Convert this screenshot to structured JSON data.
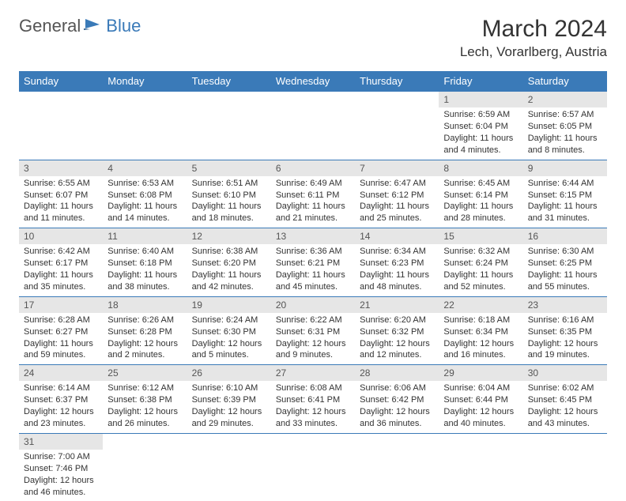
{
  "logo": {
    "general": "General",
    "blue": "Blue"
  },
  "title": "March 2024",
  "location": "Lech, Vorarlberg, Austria",
  "colors": {
    "header_bg": "#3a7ab8",
    "header_text": "#ffffff",
    "daynum_bg": "#e6e6e6",
    "border": "#3a7ab8",
    "text": "#333333",
    "logo_gray": "#555555",
    "logo_blue": "#3a7ab8",
    "page_bg": "#ffffff"
  },
  "weekdays": [
    "Sunday",
    "Monday",
    "Tuesday",
    "Wednesday",
    "Thursday",
    "Friday",
    "Saturday"
  ],
  "weeks": [
    [
      null,
      null,
      null,
      null,
      null,
      {
        "d": "1",
        "sr": "Sunrise: 6:59 AM",
        "ss": "Sunset: 6:04 PM",
        "dl1": "Daylight: 11 hours",
        "dl2": "and 4 minutes."
      },
      {
        "d": "2",
        "sr": "Sunrise: 6:57 AM",
        "ss": "Sunset: 6:05 PM",
        "dl1": "Daylight: 11 hours",
        "dl2": "and 8 minutes."
      }
    ],
    [
      {
        "d": "3",
        "sr": "Sunrise: 6:55 AM",
        "ss": "Sunset: 6:07 PM",
        "dl1": "Daylight: 11 hours",
        "dl2": "and 11 minutes."
      },
      {
        "d": "4",
        "sr": "Sunrise: 6:53 AM",
        "ss": "Sunset: 6:08 PM",
        "dl1": "Daylight: 11 hours",
        "dl2": "and 14 minutes."
      },
      {
        "d": "5",
        "sr": "Sunrise: 6:51 AM",
        "ss": "Sunset: 6:10 PM",
        "dl1": "Daylight: 11 hours",
        "dl2": "and 18 minutes."
      },
      {
        "d": "6",
        "sr": "Sunrise: 6:49 AM",
        "ss": "Sunset: 6:11 PM",
        "dl1": "Daylight: 11 hours",
        "dl2": "and 21 minutes."
      },
      {
        "d": "7",
        "sr": "Sunrise: 6:47 AM",
        "ss": "Sunset: 6:12 PM",
        "dl1": "Daylight: 11 hours",
        "dl2": "and 25 minutes."
      },
      {
        "d": "8",
        "sr": "Sunrise: 6:45 AM",
        "ss": "Sunset: 6:14 PM",
        "dl1": "Daylight: 11 hours",
        "dl2": "and 28 minutes."
      },
      {
        "d": "9",
        "sr": "Sunrise: 6:44 AM",
        "ss": "Sunset: 6:15 PM",
        "dl1": "Daylight: 11 hours",
        "dl2": "and 31 minutes."
      }
    ],
    [
      {
        "d": "10",
        "sr": "Sunrise: 6:42 AM",
        "ss": "Sunset: 6:17 PM",
        "dl1": "Daylight: 11 hours",
        "dl2": "and 35 minutes."
      },
      {
        "d": "11",
        "sr": "Sunrise: 6:40 AM",
        "ss": "Sunset: 6:18 PM",
        "dl1": "Daylight: 11 hours",
        "dl2": "and 38 minutes."
      },
      {
        "d": "12",
        "sr": "Sunrise: 6:38 AM",
        "ss": "Sunset: 6:20 PM",
        "dl1": "Daylight: 11 hours",
        "dl2": "and 42 minutes."
      },
      {
        "d": "13",
        "sr": "Sunrise: 6:36 AM",
        "ss": "Sunset: 6:21 PM",
        "dl1": "Daylight: 11 hours",
        "dl2": "and 45 minutes."
      },
      {
        "d": "14",
        "sr": "Sunrise: 6:34 AM",
        "ss": "Sunset: 6:23 PM",
        "dl1": "Daylight: 11 hours",
        "dl2": "and 48 minutes."
      },
      {
        "d": "15",
        "sr": "Sunrise: 6:32 AM",
        "ss": "Sunset: 6:24 PM",
        "dl1": "Daylight: 11 hours",
        "dl2": "and 52 minutes."
      },
      {
        "d": "16",
        "sr": "Sunrise: 6:30 AM",
        "ss": "Sunset: 6:25 PM",
        "dl1": "Daylight: 11 hours",
        "dl2": "and 55 minutes."
      }
    ],
    [
      {
        "d": "17",
        "sr": "Sunrise: 6:28 AM",
        "ss": "Sunset: 6:27 PM",
        "dl1": "Daylight: 11 hours",
        "dl2": "and 59 minutes."
      },
      {
        "d": "18",
        "sr": "Sunrise: 6:26 AM",
        "ss": "Sunset: 6:28 PM",
        "dl1": "Daylight: 12 hours",
        "dl2": "and 2 minutes."
      },
      {
        "d": "19",
        "sr": "Sunrise: 6:24 AM",
        "ss": "Sunset: 6:30 PM",
        "dl1": "Daylight: 12 hours",
        "dl2": "and 5 minutes."
      },
      {
        "d": "20",
        "sr": "Sunrise: 6:22 AM",
        "ss": "Sunset: 6:31 PM",
        "dl1": "Daylight: 12 hours",
        "dl2": "and 9 minutes."
      },
      {
        "d": "21",
        "sr": "Sunrise: 6:20 AM",
        "ss": "Sunset: 6:32 PM",
        "dl1": "Daylight: 12 hours",
        "dl2": "and 12 minutes."
      },
      {
        "d": "22",
        "sr": "Sunrise: 6:18 AM",
        "ss": "Sunset: 6:34 PM",
        "dl1": "Daylight: 12 hours",
        "dl2": "and 16 minutes."
      },
      {
        "d": "23",
        "sr": "Sunrise: 6:16 AM",
        "ss": "Sunset: 6:35 PM",
        "dl1": "Daylight: 12 hours",
        "dl2": "and 19 minutes."
      }
    ],
    [
      {
        "d": "24",
        "sr": "Sunrise: 6:14 AM",
        "ss": "Sunset: 6:37 PM",
        "dl1": "Daylight: 12 hours",
        "dl2": "and 23 minutes."
      },
      {
        "d": "25",
        "sr": "Sunrise: 6:12 AM",
        "ss": "Sunset: 6:38 PM",
        "dl1": "Daylight: 12 hours",
        "dl2": "and 26 minutes."
      },
      {
        "d": "26",
        "sr": "Sunrise: 6:10 AM",
        "ss": "Sunset: 6:39 PM",
        "dl1": "Daylight: 12 hours",
        "dl2": "and 29 minutes."
      },
      {
        "d": "27",
        "sr": "Sunrise: 6:08 AM",
        "ss": "Sunset: 6:41 PM",
        "dl1": "Daylight: 12 hours",
        "dl2": "and 33 minutes."
      },
      {
        "d": "28",
        "sr": "Sunrise: 6:06 AM",
        "ss": "Sunset: 6:42 PM",
        "dl1": "Daylight: 12 hours",
        "dl2": "and 36 minutes."
      },
      {
        "d": "29",
        "sr": "Sunrise: 6:04 AM",
        "ss": "Sunset: 6:44 PM",
        "dl1": "Daylight: 12 hours",
        "dl2": "and 40 minutes."
      },
      {
        "d": "30",
        "sr": "Sunrise: 6:02 AM",
        "ss": "Sunset: 6:45 PM",
        "dl1": "Daylight: 12 hours",
        "dl2": "and 43 minutes."
      }
    ],
    [
      {
        "d": "31",
        "sr": "Sunrise: 7:00 AM",
        "ss": "Sunset: 7:46 PM",
        "dl1": "Daylight: 12 hours",
        "dl2": "and 46 minutes."
      },
      null,
      null,
      null,
      null,
      null,
      null
    ]
  ]
}
